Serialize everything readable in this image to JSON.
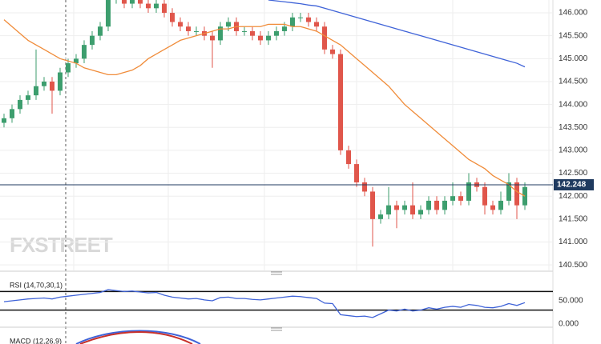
{
  "watermark": "FXSTREET",
  "chart_data": [
    {
      "type": "candlestick",
      "open": [
        143.6,
        143.7,
        143.9,
        144.1,
        144.2,
        144.4,
        144.5,
        144.3,
        144.7,
        144.9,
        145.0,
        145.3,
        145.5,
        145.7,
        146.3,
        146.3,
        146.2,
        146.3,
        146.2,
        146.1,
        146.2,
        146.0,
        145.8,
        145.7,
        145.6,
        145.6,
        145.5,
        145.4,
        145.7,
        145.8,
        145.6,
        145.6,
        145.5,
        145.4,
        145.5,
        145.6,
        145.7,
        145.9,
        145.9,
        145.8,
        145.7,
        145.2,
        145.1,
        143.0,
        142.7,
        142.3,
        142.1,
        141.5,
        141.6,
        141.8,
        141.7,
        141.8,
        141.6,
        141.7,
        141.9,
        141.7,
        141.9,
        142.0,
        141.9,
        142.3,
        142.2,
        141.8,
        141.7,
        141.9,
        142.3,
        141.8
      ],
      "high": [
        143.8,
        144.0,
        144.2,
        144.3,
        145.2,
        144.6,
        144.6,
        144.8,
        145.0,
        145.1,
        145.4,
        145.6,
        145.8,
        146.4,
        146.4,
        146.4,
        146.4,
        146.4,
        146.3,
        146.3,
        146.3,
        146.1,
        145.9,
        145.8,
        145.7,
        145.7,
        145.6,
        145.8,
        145.9,
        145.9,
        145.7,
        145.7,
        145.6,
        145.6,
        145.7,
        145.8,
        146.0,
        146.0,
        146.0,
        145.9,
        145.8,
        145.3,
        145.2,
        143.1,
        142.8,
        142.4,
        142.2,
        141.7,
        142.2,
        141.9,
        141.9,
        142.3,
        141.8,
        142.0,
        142.0,
        142.0,
        142.3,
        142.1,
        142.5,
        142.4,
        142.3,
        141.9,
        142.1,
        142.5,
        142.4,
        142.3
      ],
      "low": [
        143.5,
        143.6,
        143.8,
        144.0,
        144.1,
        144.3,
        143.8,
        144.2,
        144.6,
        144.8,
        144.9,
        145.2,
        145.4,
        145.6,
        146.2,
        146.1,
        146.1,
        146.1,
        146.0,
        146.0,
        145.9,
        145.7,
        145.6,
        145.5,
        145.5,
        145.4,
        144.8,
        145.3,
        145.6,
        145.5,
        145.5,
        145.4,
        145.3,
        145.3,
        145.4,
        145.5,
        145.6,
        145.8,
        145.7,
        145.6,
        145.1,
        145.0,
        142.9,
        142.6,
        142.2,
        142.0,
        140.9,
        141.4,
        141.5,
        141.3,
        141.6,
        141.5,
        141.5,
        141.6,
        141.6,
        141.6,
        141.8,
        141.8,
        141.8,
        142.1,
        141.6,
        141.6,
        141.6,
        141.8,
        141.5,
        141.7
      ],
      "close": [
        143.7,
        143.9,
        144.1,
        144.2,
        144.4,
        144.5,
        144.3,
        144.7,
        144.9,
        145.0,
        145.3,
        145.5,
        145.7,
        146.3,
        146.3,
        146.2,
        146.3,
        146.2,
        146.1,
        146.2,
        146.0,
        145.8,
        145.7,
        145.6,
        145.6,
        145.5,
        145.4,
        145.7,
        145.8,
        145.6,
        145.6,
        145.5,
        145.4,
        145.5,
        145.6,
        145.7,
        145.9,
        145.9,
        145.8,
        145.7,
        145.2,
        145.1,
        143.0,
        142.7,
        142.3,
        142.1,
        141.5,
        141.6,
        141.8,
        141.7,
        141.8,
        141.6,
        141.7,
        141.9,
        141.7,
        141.9,
        142.0,
        141.9,
        142.3,
        142.2,
        141.8,
        141.7,
        141.9,
        142.3,
        141.8,
        142.2
      ],
      "up_color": "#3d9e6e",
      "down_color": "#e0564b",
      "series": [
        {
          "color": "#f08c3a",
          "values": [
            145.85,
            145.7,
            145.55,
            145.4,
            145.3,
            145.2,
            145.1,
            145.0,
            144.95,
            144.9,
            144.8,
            144.75,
            144.7,
            144.65,
            144.65,
            144.7,
            144.75,
            144.85,
            145.0,
            145.1,
            145.2,
            145.3,
            145.4,
            145.45,
            145.5,
            145.55,
            145.6,
            145.65,
            145.65,
            145.7,
            145.7,
            145.7,
            145.7,
            145.75,
            145.75,
            145.75,
            145.7,
            145.7,
            145.65,
            145.6,
            145.5,
            145.4,
            145.3,
            145.15,
            145.0,
            144.85,
            144.7,
            144.55,
            144.4,
            144.2,
            144.0,
            143.85,
            143.7,
            143.55,
            143.4,
            143.25,
            143.1,
            142.95,
            142.8,
            142.7,
            142.6,
            142.45,
            142.35,
            142.25,
            142.1,
            142.0
          ]
        },
        {
          "color": "#3f63d8",
          "values": [
            null,
            null,
            null,
            null,
            null,
            null,
            null,
            null,
            null,
            null,
            null,
            null,
            null,
            null,
            null,
            null,
            null,
            null,
            null,
            null,
            null,
            null,
            null,
            null,
            null,
            null,
            null,
            null,
            null,
            null,
            null,
            null,
            null,
            146.28,
            146.26,
            146.24,
            146.22,
            146.2,
            146.17,
            146.15,
            146.1,
            146.05,
            146.0,
            145.95,
            145.9,
            145.85,
            145.8,
            145.75,
            145.7,
            145.65,
            145.6,
            145.55,
            145.5,
            145.45,
            145.4,
            145.35,
            145.3,
            145.25,
            145.2,
            145.15,
            145.1,
            145.05,
            145.0,
            144.95,
            144.9,
            144.82
          ]
        }
      ],
      "last_price": 142.248,
      "last_price_color": "#1f3a5f",
      "ylim": [
        140.38,
        146.28
      ],
      "yticks": [
        {
          "value": 146,
          "label": "146.000"
        },
        {
          "value": 145.5,
          "label": "145.500"
        },
        {
          "value": 145,
          "label": "145.000"
        },
        {
          "value": 144.5,
          "label": "144.500"
        },
        {
          "value": 144,
          "label": "144.000"
        },
        {
          "value": 143.5,
          "label": "143.500"
        },
        {
          "value": 143,
          "label": "143.000"
        },
        {
          "value": 142.5,
          "label": "142.500"
        },
        {
          "value": 142,
          "label": "142.000"
        },
        {
          "value": 141.5,
          "label": "141.500"
        },
        {
          "value": 141,
          "label": "141.000"
        },
        {
          "value": 140.5,
          "label": "140.500"
        }
      ],
      "grid": true
    },
    {
      "type": "line",
      "title": "RSI (14,70,30,1)",
      "color": "#3f63d8",
      "values": [
        48,
        50,
        52,
        54,
        55,
        56,
        54,
        58,
        60,
        62,
        64,
        66,
        68,
        74,
        72,
        70,
        71,
        69,
        67,
        68,
        62,
        58,
        56,
        54,
        55,
        52,
        50,
        57,
        58,
        55,
        55,
        53,
        52,
        54,
        56,
        58,
        60,
        59,
        57,
        55,
        45,
        44,
        20,
        18,
        16,
        17,
        14,
        22,
        30,
        28,
        32,
        28,
        30,
        35,
        32,
        36,
        38,
        36,
        42,
        40,
        36,
        35,
        38,
        44,
        40,
        46
      ],
      "levels": [
        70,
        30
      ],
      "ylim": [
        0,
        100
      ],
      "yticks": [
        {
          "value": 50,
          "label": "50.000"
        },
        {
          "value": 0,
          "label": "0.000"
        }
      ]
    },
    {
      "type": "line",
      "title": "MACD (12,26,9)"
    }
  ]
}
